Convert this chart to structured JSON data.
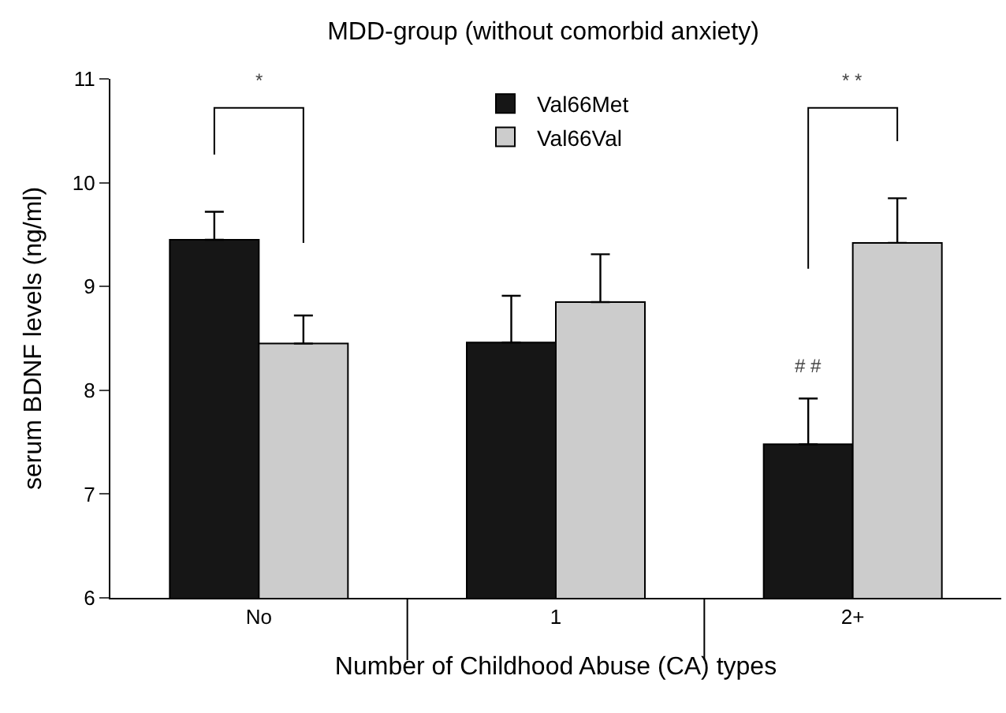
{
  "chart_data": {
    "type": "bar",
    "title": "MDD-group (without comorbid anxiety)",
    "xlabel": "Number of Childhood Abuse (CA) types",
    "ylabel": "serum BDNF levels (ng/ml)",
    "categories": [
      "No",
      "1",
      "2+"
    ],
    "series": [
      {
        "name": "Val66Met",
        "color": "#161616",
        "values": [
          9.45,
          8.46,
          7.48
        ],
        "errors": [
          [
            9.45,
            9.72
          ],
          [
            8.46,
            8.91
          ],
          [
            7.48,
            7.92
          ]
        ]
      },
      {
        "name": "Val66Val",
        "color": "#cccccc",
        "values": [
          8.45,
          8.85,
          9.42
        ],
        "errors": [
          [
            8.45,
            8.72
          ],
          [
            8.85,
            9.31
          ],
          [
            9.42,
            9.85
          ]
        ]
      }
    ],
    "ylim": [
      6,
      11
    ],
    "yticks": [
      6,
      7,
      8,
      9,
      10,
      11
    ],
    "legend": "top",
    "annotations": [
      "*",
      "* *",
      "# #"
    ]
  }
}
